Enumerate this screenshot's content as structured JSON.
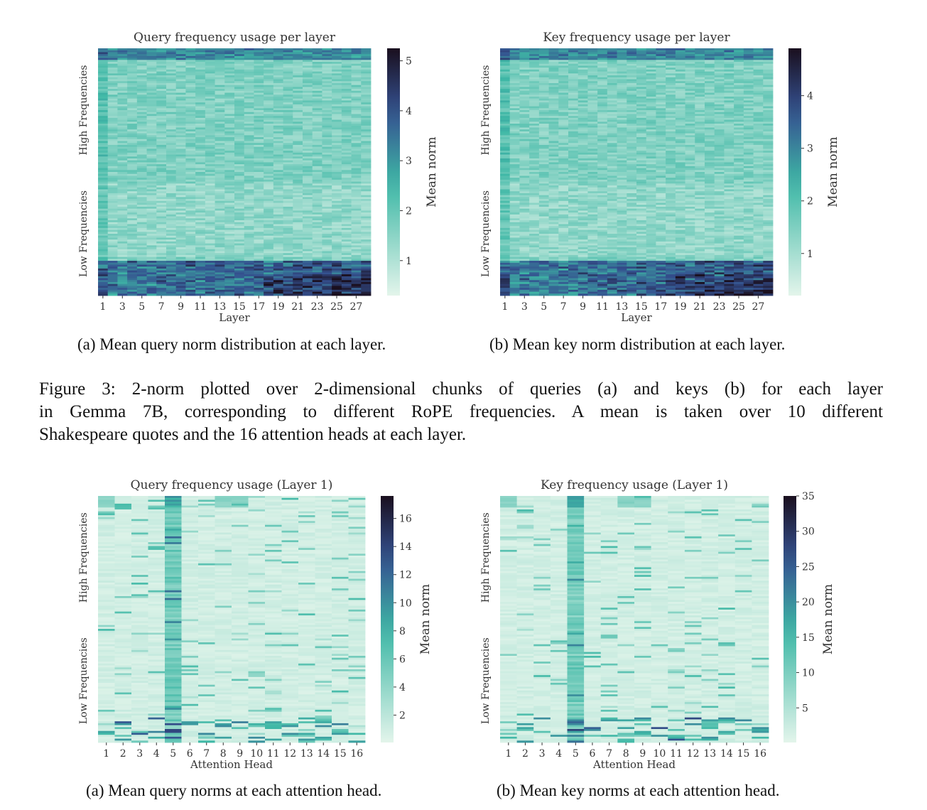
{
  "chart_data": [
    {
      "type": "heatmap",
      "title": "Query frequency usage per layer",
      "xlabel": "Layer",
      "ylabel_top": "High Frequencies",
      "ylabel_bottom": "Low Frequencies",
      "x_ticks": [
        "1",
        "3",
        "5",
        "7",
        "9",
        "11",
        "13",
        "15",
        "17",
        "19",
        "21",
        "23",
        "25",
        "27"
      ],
      "colorbar_label": "Mean norm",
      "colorbar_ticks": [
        "1",
        "2",
        "3",
        "4",
        "5"
      ],
      "value_range": [
        0.3,
        5.25
      ],
      "n_cols": 28,
      "n_rows": 128,
      "colors": {
        "low": "#e3f5eb",
        "mid": "#3fb8a6",
        "high": "#1a0f1e"
      }
    },
    {
      "type": "heatmap",
      "title": "Key frequency usage per layer",
      "xlabel": "Layer",
      "ylabel_top": "High Frequencies",
      "ylabel_bottom": "Low Frequencies",
      "x_ticks": [
        "1",
        "3",
        "5",
        "7",
        "9",
        "11",
        "13",
        "15",
        "17",
        "19",
        "21",
        "23",
        "25",
        "27"
      ],
      "colorbar_label": "Mean norm",
      "colorbar_ticks": [
        "1",
        "2",
        "3",
        "4"
      ],
      "value_range": [
        0.2,
        4.9
      ],
      "n_cols": 28,
      "n_rows": 128,
      "colors": {
        "low": "#e3f5eb",
        "mid": "#3fb8a6",
        "high": "#1a0f1e"
      }
    },
    {
      "type": "heatmap",
      "title": "Query frequency usage (Layer 1)",
      "xlabel": "Attention Head",
      "ylabel_top": "High Frequencies",
      "ylabel_bottom": "Low Frequencies",
      "x_ticks": [
        "1",
        "2",
        "3",
        "4",
        "5",
        "6",
        "7",
        "8",
        "9",
        "10",
        "11",
        "12",
        "13",
        "14",
        "15",
        "16"
      ],
      "colorbar_label": "Mean norm",
      "colorbar_ticks": [
        "2",
        "4",
        "6",
        "8",
        "10",
        "12",
        "14",
        "16"
      ],
      "value_range": [
        0.05,
        17.6
      ],
      "n_cols": 16,
      "n_rows": 128,
      "colors": {
        "low": "#e3f5eb",
        "mid": "#3fb8a6",
        "high": "#1a0f1e"
      }
    },
    {
      "type": "heatmap",
      "title": "Key frequency usage (Layer 1)",
      "xlabel": "Attention Head",
      "ylabel_top": "High Frequencies",
      "ylabel_bottom": "Low Frequencies",
      "x_ticks": [
        "1",
        "2",
        "3",
        "4",
        "5",
        "6",
        "7",
        "8",
        "9",
        "10",
        "11",
        "12",
        "13",
        "14",
        "15",
        "16"
      ],
      "colorbar_label": "Mean norm",
      "colorbar_ticks": [
        "5",
        "10",
        "15",
        "20",
        "25",
        "30",
        "35"
      ],
      "value_range": [
        0.1,
        35
      ],
      "n_cols": 16,
      "n_rows": 128,
      "colors": {
        "low": "#e3f5eb",
        "mid": "#3fb8a6",
        "high": "#1a0f1e"
      }
    }
  ],
  "captions": {
    "a_top": "(a) Mean query norm distribution at each layer.",
    "b_top": "(b) Mean key norm distribution at each layer.",
    "a_bottom": "(a) Mean query norms at each attention head.",
    "b_bottom": "(b) Mean key norms at each attention head."
  },
  "figure3": {
    "line1": "Figure 3:  2-norm plotted over 2-dimensional chunks of queries (a) and keys (b) for each layer",
    "line2": "in Gemma 7B, corresponding to different RoPE frequencies.  A mean is taken over 10 different",
    "line3": "Shakespeare quotes and the 16 attention heads at each layer."
  }
}
